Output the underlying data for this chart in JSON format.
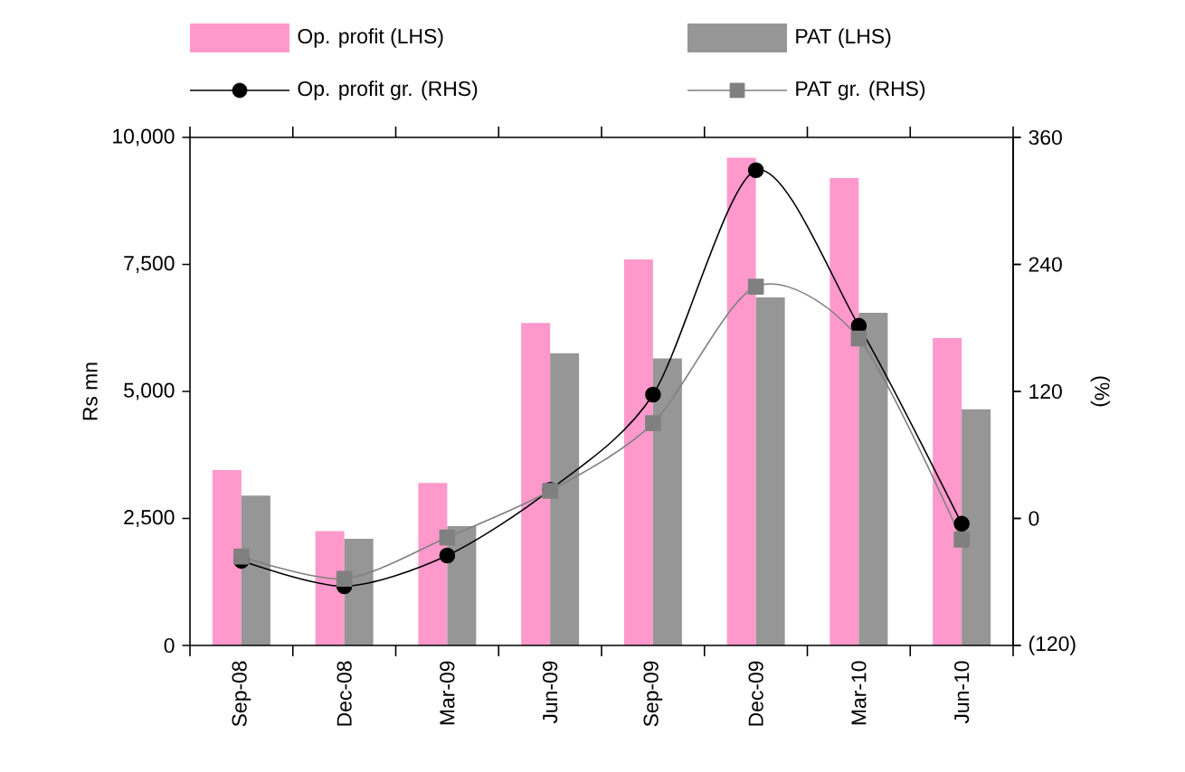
{
  "chart_data": {
    "type": "bar",
    "categories": [
      "Sep-08",
      "Dec-08",
      "Mar-09",
      "Jun-09",
      "Sep-09",
      "Dec-09",
      "Mar-10",
      "Jun-10"
    ],
    "series": [
      {
        "name": "Op. profit (LHS)",
        "color": "#ff99cc",
        "values": [
          3450,
          2250,
          3200,
          6350,
          7600,
          9600,
          9200,
          6050
        ]
      },
      {
        "name": "PAT (LHS)",
        "color": "#969696",
        "values": [
          2950,
          2100,
          2350,
          5750,
          5650,
          6850,
          6550,
          4650
        ]
      },
      {
        "name": "Op. profit gr. (RHS)",
        "type": "line",
        "axis": "y2",
        "marker": "circle",
        "color": "#000000",
        "values": [
          -40,
          -64,
          -35,
          27,
          117,
          329,
          182,
          -5
        ]
      },
      {
        "name": "PAT gr. (RHS)",
        "type": "line",
        "axis": "y2",
        "marker": "square",
        "color": "#808080",
        "values": [
          -36,
          -57,
          -18,
          26,
          90,
          219,
          170,
          -20
        ]
      }
    ],
    "ylabel": "Rs mn",
    "y2label": "(%)",
    "ylim": [
      0,
      10000
    ],
    "yticks": [
      0,
      {
        "value": 2500,
        "label": "2,500"
      },
      {
        "value": 5000,
        "label": "5,000"
      },
      {
        "value": 7500,
        "label": "7,500"
      },
      {
        "value": 10000,
        "label": "10,000"
      }
    ],
    "y2lim": [
      -120,
      360
    ],
    "y2ticks": [
      {
        "value": -120,
        "label": "(120)"
      },
      0,
      120,
      240,
      360
    ],
    "legend": "top"
  }
}
